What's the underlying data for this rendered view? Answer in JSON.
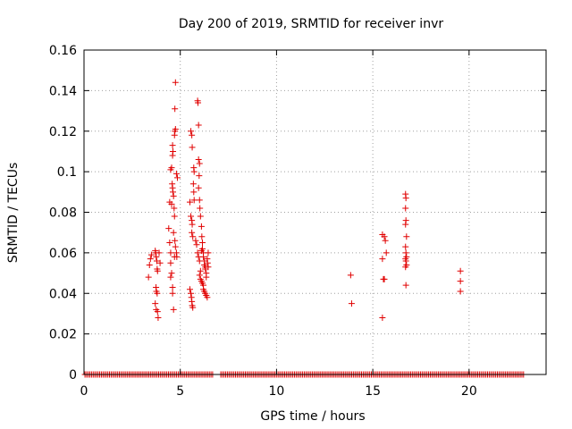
{
  "chart_data": {
    "type": "scatter",
    "title": "Day 200 of 2019, SRMTID for receiver invr",
    "xlabel": "GPS time / hours",
    "ylabel": "SRMTID / TECUs",
    "xlim": [
      0,
      24
    ],
    "ylim": [
      0,
      0.16
    ],
    "xticks": [
      0,
      5,
      10,
      15,
      20
    ],
    "xtick_labels": [
      "0",
      "5",
      "10",
      "15",
      "20"
    ],
    "yticks": [
      0,
      0.02,
      0.04,
      0.06,
      0.08,
      0.1,
      0.12,
      0.14,
      0.16
    ],
    "ytick_labels": [
      "0",
      "0.02",
      "0.04",
      "0.06",
      "0.08",
      "0.1",
      "0.12",
      "0.14",
      "0.16"
    ],
    "grid": true,
    "marker": "plus",
    "color": "#e00000",
    "zero_baseline": {
      "x_start": 0.05,
      "x_end": 22.9,
      "step": 0.085,
      "y": 0,
      "gaps": [
        [
          6.7,
          7.1
        ]
      ]
    },
    "points": [
      [
        3.35,
        0.048
      ],
      [
        3.4,
        0.054
      ],
      [
        3.45,
        0.057
      ],
      [
        3.5,
        0.059
      ],
      [
        3.7,
        0.061
      ],
      [
        3.72,
        0.06
      ],
      [
        3.75,
        0.058
      ],
      [
        3.78,
        0.056
      ],
      [
        3.8,
        0.052
      ],
      [
        3.82,
        0.051
      ],
      [
        3.74,
        0.043
      ],
      [
        3.76,
        0.041
      ],
      [
        3.8,
        0.04
      ],
      [
        3.7,
        0.035
      ],
      [
        3.75,
        0.032
      ],
      [
        3.82,
        0.031
      ],
      [
        3.85,
        0.028
      ],
      [
        3.9,
        0.06
      ],
      [
        3.95,
        0.055
      ],
      [
        4.4,
        0.072
      ],
      [
        4.45,
        0.065
      ],
      [
        4.5,
        0.06
      ],
      [
        4.5,
        0.055
      ],
      [
        4.55,
        0.05
      ],
      [
        4.5,
        0.048
      ],
      [
        4.45,
        0.085
      ],
      [
        4.55,
        0.084
      ],
      [
        4.6,
        0.043
      ],
      [
        4.6,
        0.04
      ],
      [
        4.65,
        0.032
      ],
      [
        4.5,
        0.101
      ],
      [
        4.55,
        0.102
      ],
      [
        4.58,
        0.094
      ],
      [
        4.6,
        0.092
      ],
      [
        4.62,
        0.09
      ],
      [
        4.65,
        0.088
      ],
      [
        4.6,
        0.108
      ],
      [
        4.62,
        0.11
      ],
      [
        4.6,
        0.113
      ],
      [
        4.7,
        0.118
      ],
      [
        4.72,
        0.12
      ],
      [
        4.75,
        0.121
      ],
      [
        4.72,
        0.131
      ],
      [
        4.75,
        0.144
      ],
      [
        4.68,
        0.082
      ],
      [
        4.7,
        0.078
      ],
      [
        4.72,
        0.066
      ],
      [
        4.75,
        0.063
      ],
      [
        4.8,
        0.06
      ],
      [
        4.82,
        0.058
      ],
      [
        4.8,
        0.099
      ],
      [
        4.85,
        0.097
      ],
      [
        4.65,
        0.07
      ],
      [
        4.7,
        0.058
      ],
      [
        5.5,
        0.085
      ],
      [
        5.55,
        0.078
      ],
      [
        5.6,
        0.076
      ],
      [
        5.62,
        0.074
      ],
      [
        5.6,
        0.07
      ],
      [
        5.65,
        0.068
      ],
      [
        5.55,
        0.12
      ],
      [
        5.6,
        0.118
      ],
      [
        5.62,
        0.112
      ],
      [
        5.7,
        0.102
      ],
      [
        5.72,
        0.1
      ],
      [
        5.68,
        0.094
      ],
      [
        5.7,
        0.09
      ],
      [
        5.72,
        0.086
      ],
      [
        5.5,
        0.042
      ],
      [
        5.55,
        0.04
      ],
      [
        5.58,
        0.038
      ],
      [
        5.6,
        0.036
      ],
      [
        5.62,
        0.034
      ],
      [
        5.65,
        0.033
      ],
      [
        5.9,
        0.135
      ],
      [
        5.92,
        0.134
      ],
      [
        5.95,
        0.123
      ],
      [
        5.95,
        0.106
      ],
      [
        6.0,
        0.104
      ],
      [
        5.98,
        0.098
      ],
      [
        5.95,
        0.092
      ],
      [
        6.0,
        0.086
      ],
      [
        6.02,
        0.082
      ],
      [
        6.05,
        0.078
      ],
      [
        5.8,
        0.066
      ],
      [
        5.85,
        0.064
      ],
      [
        5.9,
        0.06
      ],
      [
        5.95,
        0.058
      ],
      [
        6.0,
        0.056
      ],
      [
        6.1,
        0.073
      ],
      [
        6.12,
        0.068
      ],
      [
        6.15,
        0.065
      ],
      [
        6.15,
        0.062
      ],
      [
        6.2,
        0.06
      ],
      [
        6.2,
        0.058
      ],
      [
        6.25,
        0.056
      ],
      [
        6.25,
        0.054
      ],
      [
        6.3,
        0.053
      ],
      [
        6.3,
        0.052
      ],
      [
        6.35,
        0.05
      ],
      [
        6.35,
        0.048
      ],
      [
        6.1,
        0.046
      ],
      [
        6.15,
        0.045
      ],
      [
        6.2,
        0.044
      ],
      [
        6.2,
        0.042
      ],
      [
        6.25,
        0.041
      ],
      [
        6.3,
        0.04
      ],
      [
        6.35,
        0.039
      ],
      [
        6.4,
        0.038
      ],
      [
        6.4,
        0.057
      ],
      [
        6.42,
        0.055
      ],
      [
        6.45,
        0.053
      ],
      [
        6.05,
        0.051
      ],
      [
        6.0,
        0.049
      ],
      [
        6.05,
        0.047
      ],
      [
        6.1,
        0.061
      ],
      [
        6.45,
        0.06
      ],
      [
        13.85,
        0.049
      ],
      [
        13.9,
        0.035
      ],
      [
        15.5,
        0.069
      ],
      [
        15.6,
        0.068
      ],
      [
        15.65,
        0.066
      ],
      [
        15.7,
        0.06
      ],
      [
        15.5,
        0.057
      ],
      [
        15.55,
        0.047
      ],
      [
        15.6,
        0.047
      ],
      [
        15.5,
        0.028
      ],
      [
        16.7,
        0.089
      ],
      [
        16.72,
        0.087
      ],
      [
        16.7,
        0.082
      ],
      [
        16.72,
        0.076
      ],
      [
        16.7,
        0.074
      ],
      [
        16.75,
        0.068
      ],
      [
        16.7,
        0.063
      ],
      [
        16.72,
        0.06
      ],
      [
        16.75,
        0.058
      ],
      [
        16.7,
        0.057
      ],
      [
        16.72,
        0.056
      ],
      [
        16.75,
        0.054
      ],
      [
        16.7,
        0.053
      ],
      [
        16.72,
        0.044
      ],
      [
        19.55,
        0.051
      ],
      [
        19.55,
        0.046
      ],
      [
        19.55,
        0.041
      ]
    ]
  }
}
